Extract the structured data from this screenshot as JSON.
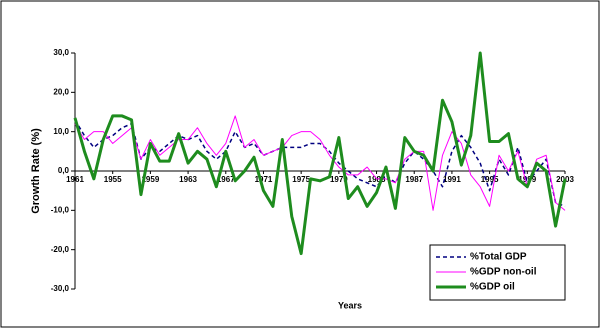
{
  "chart_data": {
    "type": "line",
    "x_label": "Years",
    "y_label": "Growth Rate (%)",
    "categories": [
      "1961",
      null,
      null,
      null,
      "1955",
      null,
      null,
      null,
      "1959",
      null,
      null,
      null,
      "1963",
      null,
      null,
      null,
      "1967",
      null,
      null,
      null,
      "1971",
      null,
      null,
      null,
      "1975",
      null,
      null,
      null,
      "1979",
      null,
      null,
      null,
      "1983",
      null,
      null,
      null,
      "1987",
      null,
      null,
      null,
      "1991",
      null,
      null,
      null,
      "1995",
      null,
      null,
      null,
      "1999",
      null,
      null,
      null,
      "2003"
    ],
    "ylim": [
      -30,
      30
    ],
    "yticks": [
      {
        "value": -30,
        "label": "-30,0"
      },
      {
        "value": -20,
        "label": "-20,0"
      },
      {
        "value": -10,
        "label": "-10,0"
      },
      {
        "value": 0,
        "label": "0,0"
      },
      {
        "value": 10,
        "label": "10,0"
      },
      {
        "value": 20,
        "label": "20,0"
      },
      {
        "value": 30,
        "label": "30,0"
      }
    ],
    "legend": "lower-right",
    "series": [
      {
        "name": "%Total GDP",
        "color": "#000080",
        "dash": true,
        "width": 1.5,
        "values": [
          13,
          9,
          6,
          8,
          9,
          11,
          12,
          3,
          6,
          5,
          7,
          9,
          8,
          9,
          5,
          3,
          5,
          10,
          6,
          7,
          4,
          5,
          6,
          6,
          6,
          7,
          7,
          5,
          2,
          0,
          -2,
          -3,
          -4,
          -1,
          -3,
          2,
          5,
          3,
          0,
          -4,
          5,
          9,
          6,
          2,
          -5,
          3,
          -1,
          6,
          -3,
          0,
          3,
          -8,
          -9
        ]
      },
      {
        "name": "%GDP non-oil",
        "color": "#ff00ff",
        "dash": false,
        "width": 1,
        "values": [
          12,
          8,
          10,
          10,
          7,
          9,
          11,
          3,
          8,
          4,
          6,
          8,
          8,
          11,
          7,
          4,
          7,
          14,
          6,
          8,
          4,
          5,
          6,
          9,
          10,
          10,
          8,
          4,
          1,
          -1,
          -1,
          1,
          -2,
          -2,
          -3,
          3,
          5,
          5,
          -10,
          4,
          10,
          7,
          -1,
          -4,
          -9,
          4,
          0,
          5,
          -4,
          3,
          4,
          -8,
          -10
        ]
      },
      {
        "name": "%GDP oil",
        "color": "#1e8c1e",
        "dash": false,
        "width": 3,
        "values": [
          13.5,
          5,
          -2,
          8,
          14,
          14,
          13,
          -6,
          7,
          2.5,
          2.5,
          9.5,
          2,
          5,
          3,
          -4,
          5,
          -2.5,
          0,
          3.5,
          -5,
          -9,
          8,
          -11.5,
          -21,
          -2,
          -2.5,
          -1.5,
          8.5,
          -7,
          -4,
          -9,
          -5.5,
          1,
          -9.5,
          8.5,
          5,
          4,
          0,
          18,
          12.5,
          1.5,
          9,
          30,
          7.5,
          7.5,
          9.5,
          -2,
          -4,
          2,
          0,
          -14,
          -2
        ]
      }
    ]
  }
}
